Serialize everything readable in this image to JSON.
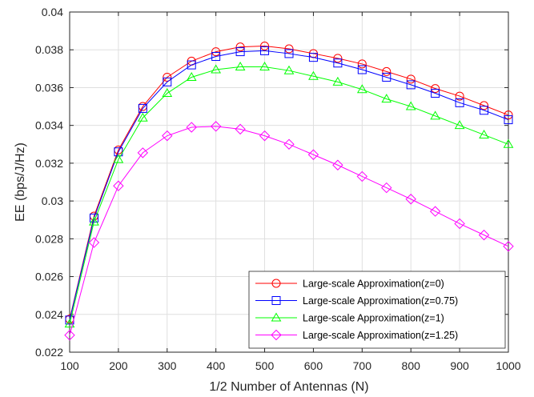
{
  "chart_data": {
    "type": "line",
    "title": "",
    "xlabel": "1/2 Number of Antennas (N)",
    "ylabel": "EE (bps/J/Hz)",
    "xlim": [
      100,
      1000
    ],
    "ylim": [
      0.022,
      0.04
    ],
    "xticks": [
      100,
      200,
      300,
      400,
      500,
      600,
      700,
      800,
      900,
      1000
    ],
    "yticks": [
      0.022,
      0.024,
      0.026,
      0.028,
      0.03,
      0.032,
      0.034,
      0.036,
      0.038,
      0.04
    ],
    "xtick_labels": [
      "100",
      "200",
      "300",
      "400",
      "500",
      "600",
      "700",
      "800",
      "900",
      "1000"
    ],
    "ytick_labels": [
      "0.022",
      "0.024",
      "0.026",
      "0.028",
      "0.03",
      "0.032",
      "0.034",
      "0.036",
      "0.038",
      "0.04"
    ],
    "grid": true,
    "legend_position": "bottom-right",
    "x": [
      100,
      150,
      200,
      250,
      300,
      350,
      400,
      450,
      500,
      550,
      600,
      650,
      700,
      750,
      800,
      850,
      900,
      950,
      1000
    ],
    "series": [
      {
        "name": "Large-scale Approximation(z=0)",
        "color": "#ff0000",
        "marker": "circle",
        "values": [
          0.02375,
          0.0292,
          0.0327,
          0.035,
          0.03655,
          0.0374,
          0.0379,
          0.03815,
          0.0382,
          0.03805,
          0.0378,
          0.03755,
          0.03725,
          0.03685,
          0.03645,
          0.03595,
          0.03555,
          0.03505,
          0.03455
        ]
      },
      {
        "name": "Large-scale Approximation(z=0.75)",
        "color": "#0000ff",
        "marker": "square",
        "values": [
          0.0237,
          0.0291,
          0.0326,
          0.0349,
          0.0363,
          0.0372,
          0.03765,
          0.0379,
          0.03795,
          0.0378,
          0.0376,
          0.0373,
          0.03695,
          0.03655,
          0.03615,
          0.0357,
          0.0352,
          0.0348,
          0.0343
        ]
      },
      {
        "name": "Large-scale Approximation(z=1)",
        "color": "#00ff00",
        "marker": "triangle",
        "values": [
          0.0235,
          0.0289,
          0.0322,
          0.0344,
          0.0357,
          0.03655,
          0.03695,
          0.0371,
          0.0371,
          0.0369,
          0.0366,
          0.0363,
          0.0359,
          0.0354,
          0.035,
          0.0345,
          0.034,
          0.0335,
          0.033
        ]
      },
      {
        "name": "Large-scale Approximation(z=1.25)",
        "color": "#ff00ff",
        "marker": "diamond",
        "values": [
          0.0229,
          0.0278,
          0.0308,
          0.03255,
          0.03345,
          0.0339,
          0.03395,
          0.0338,
          0.03345,
          0.033,
          0.03245,
          0.0319,
          0.0313,
          0.0307,
          0.0301,
          0.02945,
          0.0288,
          0.0282,
          0.0276
        ]
      }
    ]
  }
}
